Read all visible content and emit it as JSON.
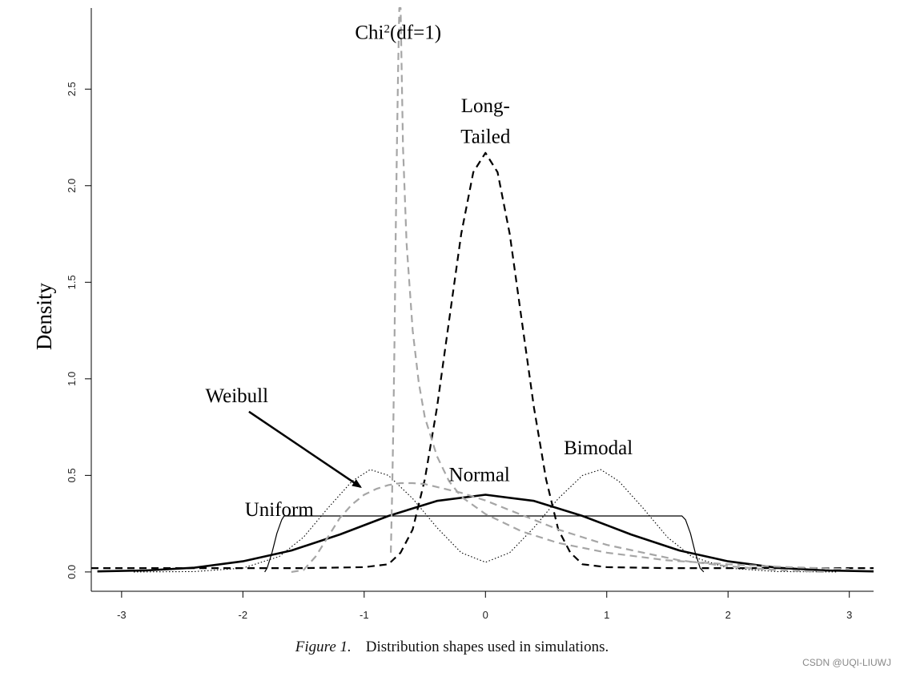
{
  "chart_data": {
    "type": "line",
    "ylabel": "Density",
    "xlabel": "",
    "xlim": [
      -3.25,
      3.2
    ],
    "ylim": [
      -0.1,
      2.92
    ],
    "x_ticks": [
      -3,
      -2,
      -1,
      0,
      1,
      2,
      3
    ],
    "y_ticks": [
      0.0,
      0.5,
      1.0,
      1.5,
      2.0,
      2.5
    ],
    "x_tick_labels": [
      "-3",
      "-2",
      "-1",
      "0",
      "1",
      "2",
      "3"
    ],
    "y_tick_labels": [
      "0.0",
      "0.5",
      "1.0",
      "1.5",
      "2.0",
      "2.5"
    ],
    "grid": false,
    "series": [
      {
        "name": "Normal",
        "style": "solid-thick",
        "color": "#000000",
        "x": [
          -3.2,
          -2.8,
          -2.4,
          -2.0,
          -1.6,
          -1.2,
          -0.8,
          -0.4,
          0.0,
          0.4,
          0.8,
          1.2,
          1.6,
          2.0,
          2.4,
          2.8,
          3.2
        ],
        "y": [
          0.003,
          0.008,
          0.022,
          0.055,
          0.111,
          0.194,
          0.29,
          0.368,
          0.4,
          0.368,
          0.29,
          0.194,
          0.111,
          0.055,
          0.022,
          0.008,
          0.003
        ]
      },
      {
        "name": "Uniform",
        "style": "solid-thin",
        "color": "#000000",
        "x": [
          -1.82,
          -1.8,
          -1.76,
          -1.72,
          -1.68,
          -1.66,
          1.62,
          1.65,
          1.69,
          1.73,
          1.77,
          1.8
        ],
        "y": [
          0.0,
          0.02,
          0.1,
          0.2,
          0.27,
          0.29,
          0.29,
          0.27,
          0.2,
          0.1,
          0.02,
          0.0
        ]
      },
      {
        "name": "Bimodal",
        "style": "dotted",
        "color": "#000000",
        "x": [
          -2.9,
          -2.4,
          -2.0,
          -1.7,
          -1.5,
          -1.3,
          -1.1,
          -0.95,
          -0.8,
          -0.6,
          -0.4,
          -0.2,
          0.0,
          0.2,
          0.4,
          0.6,
          0.8,
          0.95,
          1.1,
          1.3,
          1.5,
          1.7,
          2.0,
          2.4,
          2.9
        ],
        "y": [
          0.0,
          0.002,
          0.02,
          0.08,
          0.18,
          0.33,
          0.47,
          0.53,
          0.5,
          0.38,
          0.23,
          0.1,
          0.05,
          0.1,
          0.23,
          0.38,
          0.5,
          0.53,
          0.47,
          0.33,
          0.18,
          0.08,
          0.02,
          0.002,
          0.0
        ]
      },
      {
        "name": "Long-Tailed",
        "style": "dashed",
        "color": "#000000",
        "x": [
          -3.25,
          -2.5,
          -1.5,
          -1.0,
          -0.8,
          -0.7,
          -0.6,
          -0.5,
          -0.4,
          -0.3,
          -0.2,
          -0.1,
          0.0,
          0.1,
          0.2,
          0.3,
          0.4,
          0.5,
          0.6,
          0.7,
          0.8,
          1.0,
          1.5,
          2.5,
          3.2
        ],
        "y": [
          0.02,
          0.02,
          0.02,
          0.025,
          0.04,
          0.1,
          0.22,
          0.48,
          0.85,
          1.3,
          1.75,
          2.07,
          2.17,
          2.07,
          1.75,
          1.3,
          0.85,
          0.48,
          0.22,
          0.1,
          0.04,
          0.025,
          0.02,
          0.02,
          0.02
        ]
      },
      {
        "name": "Chi2(df=1)",
        "style": "dashed",
        "color": "#a6a6a6",
        "x": [
          -0.78,
          -0.77,
          -0.76,
          -0.75,
          -0.74,
          -0.73,
          -0.72,
          -0.71,
          -0.7,
          -0.68,
          -0.65,
          -0.6,
          -0.55,
          -0.5,
          -0.4,
          -0.3,
          -0.2,
          0.0,
          0.3,
          0.6,
          1.0,
          1.5,
          2.0,
          2.5,
          3.0
        ],
        "y": [
          0.1,
          0.4,
          0.75,
          1.2,
          1.75,
          2.2,
          2.6,
          2.92,
          2.92,
          2.2,
          1.7,
          1.25,
          0.98,
          0.8,
          0.6,
          0.47,
          0.39,
          0.3,
          0.21,
          0.15,
          0.1,
          0.06,
          0.04,
          0.025,
          0.015
        ]
      },
      {
        "name": "Weibull",
        "style": "dashed",
        "color": "#a6a6a6",
        "x": [
          -1.6,
          -1.5,
          -1.4,
          -1.3,
          -1.2,
          -1.1,
          -1.0,
          -0.9,
          -0.8,
          -0.7,
          -0.6,
          -0.5,
          -0.4,
          -0.2,
          0.0,
          0.2,
          0.4,
          0.6,
          0.8,
          1.0,
          1.3,
          1.6,
          2.0,
          2.4,
          2.8
        ],
        "y": [
          0.0,
          0.01,
          0.08,
          0.18,
          0.28,
          0.35,
          0.4,
          0.43,
          0.45,
          0.46,
          0.46,
          0.455,
          0.44,
          0.41,
          0.37,
          0.32,
          0.27,
          0.22,
          0.18,
          0.14,
          0.1,
          0.06,
          0.03,
          0.01,
          0.0
        ]
      }
    ],
    "annotations": [
      {
        "text": "Chi",
        "sup": "2",
        "text_after": "(df=1)",
        "x": -0.72,
        "y": 2.76
      },
      {
        "text": "Long-",
        "x": 0.0,
        "y": 2.38
      },
      {
        "text": "Tailed",
        "x": 0.0,
        "y": 2.22
      },
      {
        "text": "Weibull",
        "x": -2.05,
        "y": 0.88
      },
      {
        "text": "Bimodal",
        "x": 0.93,
        "y": 0.61
      },
      {
        "text": "Normal",
        "x": -0.05,
        "y": 0.47
      },
      {
        "text": "Uniform",
        "x": -1.7,
        "y": 0.29
      }
    ],
    "arrow": {
      "from": [
        -1.95,
        0.83
      ],
      "to": [
        -1.03,
        0.44
      ]
    }
  },
  "caption": {
    "figure_label": "Figure 1.",
    "text": "Distribution shapes used in simulations."
  },
  "watermark": "CSDN @UQI-LIUWJ"
}
